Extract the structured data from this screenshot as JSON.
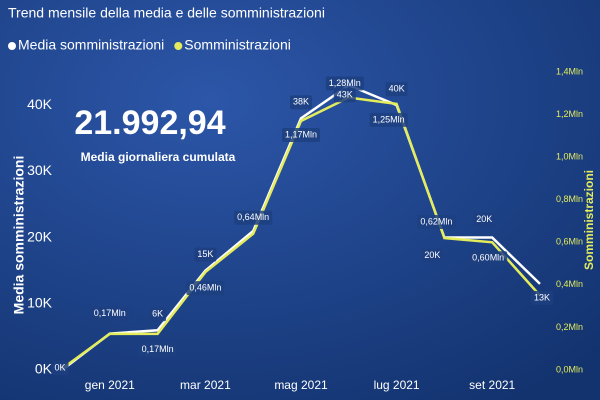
{
  "chart_data": {
    "type": "line",
    "title": "Trend mensile della media e delle somministrazioni",
    "kpi": {
      "value": "21.992,94",
      "label": "Media giornaliera cumulata"
    },
    "y_label": "Media somministrazioni",
    "y2_label": "Somministrazioni",
    "categories": [
      null,
      "gen 2021",
      null,
      "mar 2021",
      null,
      "mag 2021",
      null,
      "lug 2021",
      null,
      "set 2021",
      null
    ],
    "series": [
      {
        "name": "Media somministrazioni",
        "color": "#ffffff",
        "values": [
          0,
          5500,
          6000,
          15000,
          21000,
          38000,
          43000,
          40000,
          20000,
          20000,
          13000
        ],
        "value_labels": [
          "0K",
          null,
          "6K",
          "15K",
          null,
          "38K",
          "43K",
          "40K",
          "20K",
          "20K",
          "13K"
        ]
      },
      {
        "name": "Somministrazioni",
        "color": "#e4ec5c",
        "axis": "y2",
        "values": [
          6000,
          170000,
          170000,
          460000,
          640000,
          1170000,
          1280000,
          1250000,
          620000,
          600000,
          350000
        ],
        "value_labels": [
          null,
          "0,17Mln",
          "0,17Mln",
          "0,46Mln",
          "0,64Mln",
          "1,17Mln",
          "1,28Mln",
          "1,25Mln",
          "0,62Mln",
          "0,60Mln",
          null
        ]
      }
    ],
    "ylim": [
      0,
      45000
    ],
    "yticks": [
      {
        "value": 0,
        "label": "0K"
      },
      {
        "value": 10000,
        "label": "10K"
      },
      {
        "value": 20000,
        "label": "20K"
      },
      {
        "value": 30000,
        "label": "30K"
      },
      {
        "value": 40000,
        "label": "40K"
      }
    ],
    "y2lim": [
      0,
      1400000
    ],
    "y2ticks": [
      {
        "value": 0,
        "label": "0,0Mln"
      },
      {
        "value": 200000,
        "label": "0,2Mln"
      },
      {
        "value": 400000,
        "label": "0,4Mln"
      },
      {
        "value": 600000,
        "label": "0,6Mln"
      },
      {
        "value": 800000,
        "label": "0,8Mln"
      },
      {
        "value": 1000000,
        "label": "1,0Mln"
      },
      {
        "value": 1200000,
        "label": "1,2Mln"
      },
      {
        "value": 1400000,
        "label": "1,4Mln"
      }
    ],
    "legend": "top-left"
  }
}
